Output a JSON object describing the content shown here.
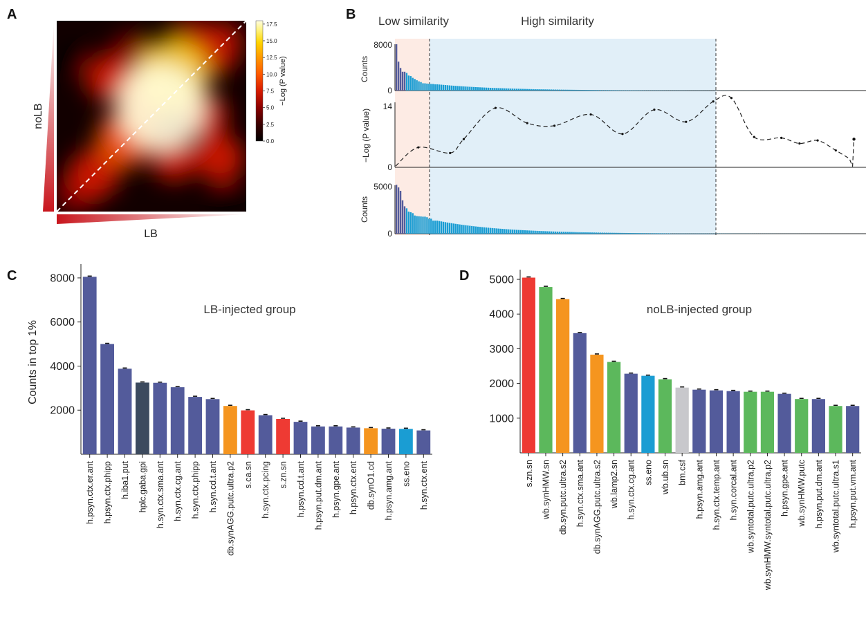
{
  "figure": {
    "panel_letters": [
      "A",
      "B",
      "C",
      "D"
    ]
  },
  "panel_a": {
    "xlabel": "LB",
    "ylabel": "noLB",
    "colorbar_label": "−Log (P value)",
    "colorbar_ticks": [
      0.0,
      2.5,
      5.0,
      7.5,
      10.0,
      12.5,
      15.0,
      17.5
    ],
    "colorbar_tick_labels": [
      "0.0",
      "2.5",
      "5.0",
      "7.5",
      "10.0",
      "12.5",
      "15.0",
      "17.5"
    ],
    "colormap": [
      "#000000",
      "#3a0000",
      "#8b0000",
      "#d81b00",
      "#ff5a00",
      "#ff9a00",
      "#ffd400",
      "#fff27a",
      "#fffde0"
    ]
  },
  "panel_b": {
    "region_low_label": "Low similarity",
    "region_high_label": "High similarity",
    "region_low_color": "#fdebe4",
    "region_high_color": "#e1eff8",
    "top": {
      "ylabel": "Counts",
      "ytick": "8000",
      "ymax": 8000
    },
    "middle": {
      "ylabel": "−Log (P value)",
      "ytick": "14",
      "ymax": 15
    },
    "bottom": {
      "ylabel": "Counts",
      "ytick": "5000",
      "ymax": 5000
    }
  },
  "chart_data": [
    {
      "panel": "A",
      "type": "heatmap",
      "xlabel": "LB",
      "ylabel": "noLB",
      "colorbar": {
        "label": "−Log (P value)",
        "range": [
          0,
          18
        ]
      },
      "hotspots": [
        {
          "x": 0.55,
          "y": 0.55,
          "value": 17.5
        },
        {
          "x": 0.61,
          "y": 0.71,
          "value": 13.5
        },
        {
          "x": 0.47,
          "y": 0.59,
          "value": 10
        },
        {
          "x": 0.36,
          "y": 0.38,
          "value": 9
        },
        {
          "x": 0.2,
          "y": 0.2,
          "value": 7
        },
        {
          "x": 0.83,
          "y": 0.85,
          "value": 7
        },
        {
          "x": 0.86,
          "y": 0.28,
          "value": 6.5
        },
        {
          "x": 0.27,
          "y": 0.7,
          "value": 6
        },
        {
          "x": 0.78,
          "y": 0.5,
          "value": 6
        },
        {
          "x": 0.62,
          "y": 0.28,
          "value": 6
        },
        {
          "x": 0.4,
          "y": 0.82,
          "value": 5.5
        },
        {
          "x": 0.7,
          "y": 0.92,
          "value": 5
        },
        {
          "x": 0.1,
          "y": 0.1,
          "value": 5
        },
        {
          "x": 0.08,
          "y": 0.8,
          "value": 1
        },
        {
          "x": 0.9,
          "y": 0.08,
          "value": 1
        },
        {
          "x": 0.95,
          "y": 0.95,
          "value": 1
        }
      ]
    },
    {
      "panel": "B",
      "type": "line",
      "regions": {
        "low_end": 0.12,
        "high_end": 0.6
      },
      "top_counts": {
        "peak": 8000,
        "values_by_rank": [
          8000,
          5000,
          3900,
          3250,
          3250,
          3050,
          2600,
          2500,
          2200,
          2000,
          1780,
          1600,
          1470,
          1260,
          1250,
          1210,
          1180,
          1150,
          1140,
          1080
        ]
      },
      "middle_curve": {
        "x": [
          0.0,
          0.05,
          0.12,
          0.15,
          0.22,
          0.29,
          0.35,
          0.43,
          0.5,
          0.57,
          0.64,
          0.7,
          0.74,
          0.79,
          0.85,
          0.89,
          0.93,
          0.97,
          1.0,
          1.01
        ],
        "y": [
          0.3,
          4.6,
          3.3,
          6.5,
          13.7,
          10.2,
          9.6,
          12.2,
          7.7,
          13.3,
          10.5,
          15.2,
          16.0,
          7.0,
          6.8,
          5.5,
          6.2,
          3.9,
          2.0,
          6.5
        ]
      },
      "bottom_counts": {
        "peak": 5050,
        "values_by_rank": [
          5050,
          4780,
          4430,
          3450,
          2830,
          2620,
          2280,
          2220,
          2120,
          1880,
          1820,
          1800,
          1780,
          1760,
          1760,
          1700,
          1550,
          1550,
          1350,
          1350
        ]
      }
    },
    {
      "panel": "C",
      "type": "bar",
      "title": "LB-injected group",
      "ylabel": "Counts in top 1%",
      "ylim": [
        0,
        8500
      ],
      "yticks": [
        2000,
        4000,
        6000,
        8000
      ],
      "ytick_labels": [
        "2000",
        "4000",
        "6000",
        "8000"
      ],
      "categories": [
        "h.psyn.ctx.er.ant",
        "h.psyn.ctx.phipp",
        "h.iba1.put",
        "hplc.gaba.gpi",
        "h.syn.ctx.sma.ant",
        "h.syn.ctx.cg.ant",
        "h.syn.ctx.phipp",
        "h.syn.cd.t.ant",
        "db.synAGG.putc.ultra.p2",
        "s.ca.sn",
        "h.syn.ctx.pcing",
        "s.zn.sn",
        "h.psyn.cd.t.ant",
        "h.psyn.put.dm.ant",
        "h.psyn.gpe.ant",
        "h.psyn.ctx.ent",
        "db.synO1.cd",
        "h.psyn.amg.ant",
        "ss.eno",
        "h.syn.ctx.ent"
      ],
      "values": [
        8050,
        5000,
        3880,
        3250,
        3240,
        3040,
        2600,
        2500,
        2190,
        1990,
        1770,
        1600,
        1470,
        1260,
        1260,
        1210,
        1180,
        1160,
        1150,
        1080
      ],
      "colors": [
        "#535b9b",
        "#535b9b",
        "#535b9b",
        "#3c4a5e",
        "#535b9b",
        "#535b9b",
        "#535b9b",
        "#535b9b",
        "#f5951f",
        "#ee3a33",
        "#535b9b",
        "#ee3a33",
        "#535b9b",
        "#535b9b",
        "#535b9b",
        "#535b9b",
        "#f5951f",
        "#535b9b",
        "#1a9dd3",
        "#535b9b"
      ]
    },
    {
      "panel": "D",
      "type": "bar",
      "title": "noLB-injected group",
      "ylabel": "",
      "ylim": [
        0,
        5200
      ],
      "yticks": [
        1000,
        2000,
        3000,
        4000,
        5000
      ],
      "ytick_labels": [
        "1000",
        "2000",
        "3000",
        "4000",
        "5000"
      ],
      "categories": [
        "s.zn.sn",
        "wb.synHMW.sn",
        "db.syn.putc.ultra.s2",
        "h.syn.ctx.sma.ant",
        "db.synAGG.putc.ultra.s2",
        "wb.lamp2.sn",
        "h.syn.ctx.cg.ant",
        "ss.eno",
        "wb.ub.sn",
        "bm.csf",
        "h.psyn.amg.ant",
        "h.syn.ctx.temp.ant",
        "h.syn.corcal.ant",
        "wb.syntotal.putc.ultra.p2",
        "wb.synHMW.syntotal.putc.ultra.p2",
        "h.psyn.gpe.ant",
        "wb.synHMW.putc",
        "h.psyn.put.dm.ant",
        "wb.syntotal.putc.ultra.s1",
        "h.psyn.put.vm.ant"
      ],
      "values": [
        5050,
        4780,
        4430,
        3450,
        2830,
        2620,
        2280,
        2220,
        2120,
        1880,
        1820,
        1800,
        1780,
        1760,
        1760,
        1700,
        1550,
        1550,
        1350,
        1350
      ],
      "colors": [
        "#ee3a33",
        "#5cb85c",
        "#f5951f",
        "#535b9b",
        "#f5951f",
        "#5cb85c",
        "#535b9b",
        "#1a9dd3",
        "#5cb85c",
        "#c8c8cc",
        "#535b9b",
        "#535b9b",
        "#535b9b",
        "#5cb85c",
        "#5cb85c",
        "#535b9b",
        "#5cb85c",
        "#535b9b",
        "#5cb85c",
        "#535b9b"
      ]
    }
  ]
}
